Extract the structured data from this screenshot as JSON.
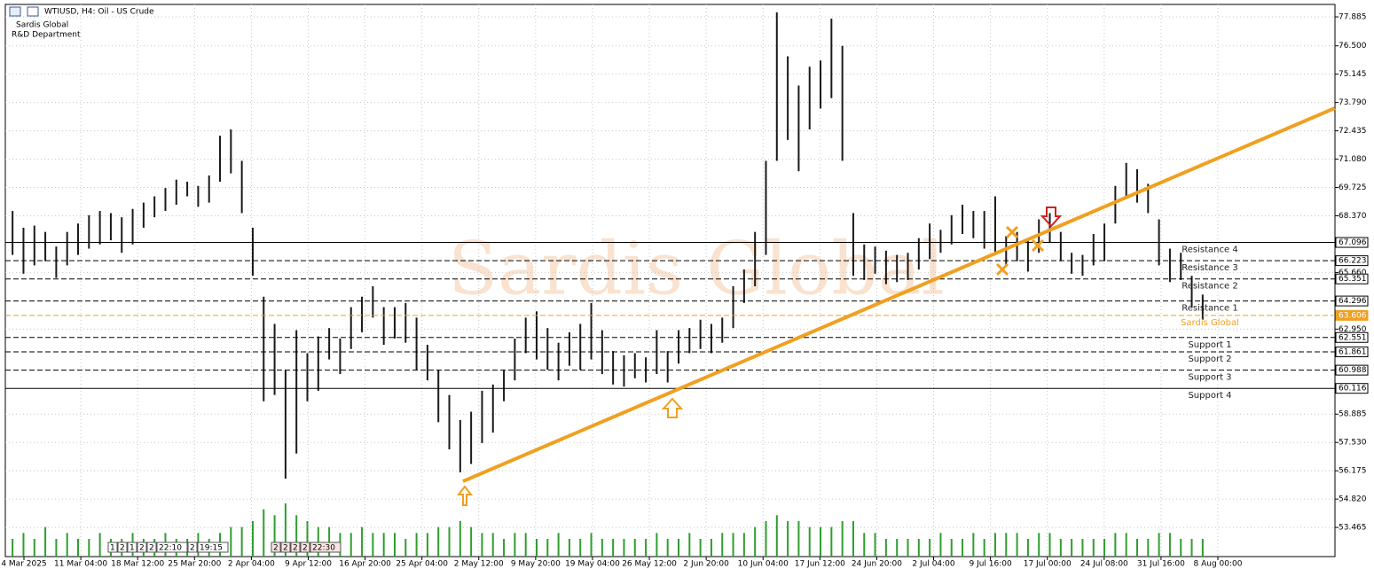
{
  "chart_data": {
    "type": "ohlc",
    "title": "WTIUSD, H4:  Oil - US Crude",
    "subtitle": [
      "Sardis Global",
      "R&D Department"
    ],
    "watermark": "Sardis Global",
    "grid": true,
    "bar_color": "#1a1a1a",
    "volume_color": "#2e9e2e",
    "ylim": [
      52.07,
      78.48
    ],
    "yticks": [
      77.885,
      {
        "value": 76.5,
        "label": "76.500"
      },
      75.145,
      {
        "value": 73.79,
        "label": "73.790"
      },
      72.435,
      {
        "value": 71.08,
        "label": "71.080"
      },
      69.725,
      {
        "value": 68.37,
        "label": "68.370"
      },
      {
        "value": 65.66,
        "label": "65.660"
      },
      {
        "value": 62.95,
        "label": "62.950"
      },
      58.885,
      {
        "value": 57.53,
        "label": "57.530"
      },
      56.175,
      {
        "value": 54.82,
        "label": "54.820"
      },
      53.465
    ],
    "x_labels": [
      "4 Mar 2025",
      "11 Mar 04:00",
      "18 Mar 12:00",
      "25 Mar 20:00",
      "2 Apr 04:00",
      "9 Apr 12:00",
      "16 Apr 20:00",
      "25 Apr 04:00",
      "2 May 12:00",
      "9 May 20:00",
      "19 May 04:00",
      "26 May 12:00",
      "2 Jun 20:00",
      "10 Jun 04:00",
      "17 Jun 12:00",
      "24 Jun 20:00",
      "2 Jul 04:00",
      "9 Jul 16:00",
      "17 Jul 00:00",
      "24 Jul 08:00",
      "31 Jul 16:00",
      "8 Aug 00:00"
    ],
    "low": [
      66.5,
      65.6,
      66.0,
      66.2,
      65.4,
      66.0,
      66.5,
      66.8,
      67.0,
      67.2,
      66.6,
      67.0,
      67.8,
      68.3,
      68.6,
      68.9,
      69.3,
      68.8,
      69.0,
      70.0,
      70.4,
      68.5,
      65.5,
      59.5,
      59.8,
      55.8,
      57.0,
      59.5,
      60.0,
      61.5,
      60.8,
      62.0,
      62.8,
      63.5,
      62.2,
      62.5,
      62.3,
      61.0,
      60.5,
      58.5,
      57.2,
      56.1,
      56.5,
      57.5,
      58.0,
      59.5,
      60.5,
      61.8,
      61.5,
      61.0,
      60.5,
      61.2,
      61.0,
      61.5,
      60.8,
      60.3,
      60.2,
      60.6,
      60.4,
      60.8,
      60.4,
      61.3,
      61.8,
      62.0,
      61.8,
      62.3,
      63.0,
      64.2,
      65.0,
      66.5,
      71.0,
      72.0,
      70.5,
      72.5,
      73.5,
      74.0,
      71.0,
      65.5,
      65.3,
      65.6,
      65.1,
      65.2,
      65.3,
      65.8,
      66.3,
      66.6,
      67.0,
      67.5,
      67.3,
      66.8,
      66.6,
      66.0,
      66.2,
      65.7,
      66.6,
      67.1,
      66.2,
      65.6,
      65.5,
      66.0,
      66.2,
      68.0,
      69.2,
      69.0,
      68.5,
      66.0,
      65.2,
      65.3,
      64.0,
      63.4
    ],
    "high": [
      68.6,
      67.8,
      67.9,
      67.6,
      66.9,
      67.6,
      68.0,
      68.4,
      68.6,
      68.5,
      68.3,
      68.7,
      69.0,
      69.3,
      69.7,
      70.1,
      70.0,
      69.8,
      70.3,
      72.2,
      72.5,
      71.0,
      67.8,
      64.5,
      63.2,
      61.0,
      62.9,
      61.8,
      62.6,
      63.0,
      62.5,
      64.0,
      64.5,
      65.0,
      64.0,
      64.0,
      64.2,
      63.5,
      62.2,
      61.0,
      59.8,
      58.6,
      59.0,
      60.0,
      60.3,
      61.0,
      62.5,
      63.5,
      63.8,
      63.0,
      62.3,
      62.8,
      63.2,
      64.2,
      62.9,
      61.9,
      61.7,
      61.8,
      61.6,
      62.9,
      61.9,
      62.9,
      63.0,
      63.4,
      63.2,
      63.5,
      65.0,
      65.8,
      67.6,
      71.0,
      78.1,
      76.0,
      74.6,
      75.5,
      75.8,
      77.8,
      76.5,
      68.5,
      67.0,
      66.9,
      66.7,
      66.5,
      66.6,
      67.3,
      68.0,
      67.7,
      68.4,
      68.9,
      68.6,
      68.6,
      69.3,
      67.4,
      67.6,
      67.2,
      68.2,
      68.5,
      67.6,
      66.6,
      66.5,
      67.5,
      68.0,
      69.8,
      70.9,
      70.6,
      69.9,
      68.2,
      66.8,
      66.6,
      65.5,
      64.6
    ],
    "volume": [
      3,
      4,
      3,
      5,
      3,
      4,
      3,
      3,
      4,
      3,
      3,
      4,
      3,
      3,
      4,
      3,
      3,
      4,
      3,
      4,
      5,
      5,
      6,
      8,
      7,
      9,
      7,
      6,
      5,
      5,
      4,
      4,
      5,
      4,
      4,
      4,
      3,
      4,
      4,
      5,
      5,
      6,
      5,
      4,
      4,
      3,
      4,
      4,
      3,
      3,
      4,
      3,
      3,
      4,
      3,
      3,
      3,
      3,
      3,
      4,
      3,
      3,
      4,
      3,
      3,
      4,
      4,
      4,
      5,
      6,
      7,
      6,
      6,
      5,
      5,
      5,
      6,
      6,
      4,
      4,
      3,
      3,
      3,
      3,
      3,
      4,
      3,
      3,
      4,
      3,
      4,
      4,
      4,
      3,
      4,
      4,
      3,
      3,
      3,
      3,
      3,
      4,
      4,
      3,
      3,
      4,
      4,
      3,
      3,
      3
    ],
    "trendline": {
      "x": [
        41.25,
        121.1
      ],
      "y": [
        55.67,
        73.52
      ],
      "color": "#f0a020"
    },
    "levels": [
      {
        "name": "Resistance 4",
        "value": 67.096,
        "label": "67.096",
        "style": "solid",
        "color": "#000000"
      },
      {
        "name": "Resistance 3",
        "value": 66.223,
        "label": "66.223",
        "style": "dashed",
        "color": "#000000"
      },
      {
        "name": "Resistance 2",
        "value": 65.351,
        "label": "65.351",
        "style": "dashed",
        "color": "#000000"
      },
      {
        "name": "Resistance 1",
        "value": 64.296,
        "label": "64.296",
        "style": "dashed",
        "color": "#000000"
      },
      {
        "name": "Sardis Global",
        "value": 63.606,
        "label": "63.606",
        "style": "dashed",
        "color": "#f0a020"
      },
      {
        "name": "Support 1",
        "value": 62.551,
        "label": "62.551",
        "style": "dashed",
        "color": "#000000"
      },
      {
        "name": "Support 2",
        "value": 61.861,
        "label": "61.861",
        "style": "dashed",
        "color": "#000000"
      },
      {
        "name": "Support 3",
        "value": 60.988,
        "label": "60.988",
        "style": "dashed",
        "color": "#000000"
      },
      {
        "name": "Support 4",
        "value": 60.116,
        "label": "60.116",
        "style": "solid",
        "color": "#000000"
      }
    ],
    "trade_markers": [
      [
        "1",
        "2",
        "1",
        "2",
        "2",
        "22:10",
        "2",
        "19:15"
      ],
      [
        "2",
        "2",
        "2",
        "2",
        "22:30"
      ]
    ]
  }
}
